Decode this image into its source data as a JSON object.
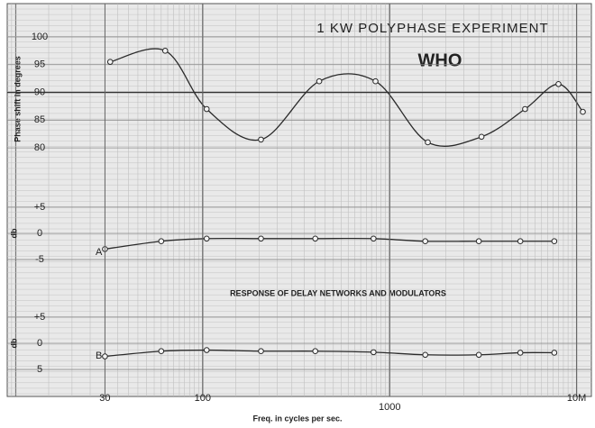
{
  "chart_data": [
    {
      "type": "line",
      "title": "1 KW POLYPHASE EXPERIMENT",
      "subtitle": "WHO",
      "ylabel": "Phase shift in degrees",
      "log_x": true,
      "xlim": [
        9,
        12000
      ],
      "ylim": [
        74.5,
        106
      ],
      "yticks": [
        80,
        85,
        90,
        95,
        100
      ],
      "hline": 90,
      "grid": true,
      "series": [
        {
          "color": "#2a2a2a",
          "x": [
            32,
            63,
            105,
            205,
            420,
            840,
            1600,
            3100,
            5300,
            8000,
            10800
          ],
          "values": [
            95.5,
            97.5,
            87,
            81.5,
            92,
            92,
            81,
            82,
            87,
            91.5,
            86.5
          ]
        }
      ]
    },
    {
      "type": "line",
      "ylabel": "db",
      "log_x": true,
      "xlim": [
        9,
        12000
      ],
      "ylim": [
        -10.5,
        10.5
      ],
      "yticks": [
        {
          "value": 5,
          "label": "+5"
        },
        0,
        -5
      ],
      "grid": true,
      "series": [
        {
          "name": "A",
          "color": "#2a2a2a",
          "x": [
            30,
            60,
            105,
            205,
            400,
            820,
            1550,
            3000,
            5000,
            7600
          ],
          "values": [
            -3,
            -1.5,
            -1,
            -1,
            -1,
            -1,
            -1.5,
            -1.5,
            -1.5,
            -1.5
          ]
        }
      ]
    },
    {
      "type": "line",
      "ylabel": "db",
      "annotation": "RESPONSE OF DELAY NETWORKS AND MODULATORS",
      "xlabel": "Freq. in cycles per sec.",
      "log_x": true,
      "xlim": [
        9,
        12000
      ],
      "ylim": [
        -10.5,
        10.5
      ],
      "yticks": [
        {
          "value": 5,
          "label": "+5"
        },
        0,
        {
          "value": -5,
          "label": "5"
        }
      ],
      "xticks": [
        30,
        100,
        1000,
        {
          "value": 10000,
          "label": "10M"
        }
      ],
      "grid": true,
      "series": [
        {
          "name": "B",
          "color": "#2a2a2a",
          "x": [
            30,
            60,
            105,
            205,
            400,
            820,
            1550,
            3000,
            5000,
            7600
          ],
          "values": [
            -2.5,
            -1.5,
            -1.3,
            -1.5,
            -1.5,
            -1.7,
            -2.2,
            -2.2,
            -1.8,
            -1.8
          ]
        }
      ]
    }
  ]
}
